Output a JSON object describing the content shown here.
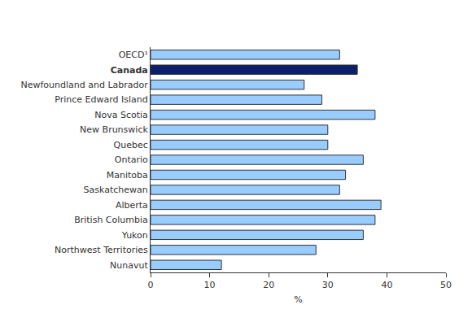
{
  "chart_data": {
    "type": "bar",
    "orientation": "horizontal",
    "categories": [
      "OECD¹",
      "Canada",
      "Newfoundland and Labrador",
      "Prince Edward Island",
      "Nova Scotia",
      "New Brunswick",
      "Quebec",
      "Ontario",
      "Manitoba",
      "Saskatchewan",
      "Alberta",
      "British Columbia",
      "Yukon",
      "Northwest Territories",
      "Nunavut"
    ],
    "values": [
      32,
      35,
      26,
      29,
      38,
      30,
      30,
      36,
      33,
      32,
      39,
      38,
      36,
      28,
      12
    ],
    "colors": [
      "#99ccff",
      "#0b1f6b",
      "#99ccff",
      "#99ccff",
      "#99ccff",
      "#99ccff",
      "#99ccff",
      "#99ccff",
      "#99ccff",
      "#99ccff",
      "#99ccff",
      "#99ccff",
      "#99ccff",
      "#99ccff",
      "#99ccff"
    ],
    "x_label": "%",
    "xlim": [
      0,
      50
    ],
    "xticks": [
      0,
      10,
      20,
      30,
      40,
      50
    ],
    "grid": false
  }
}
